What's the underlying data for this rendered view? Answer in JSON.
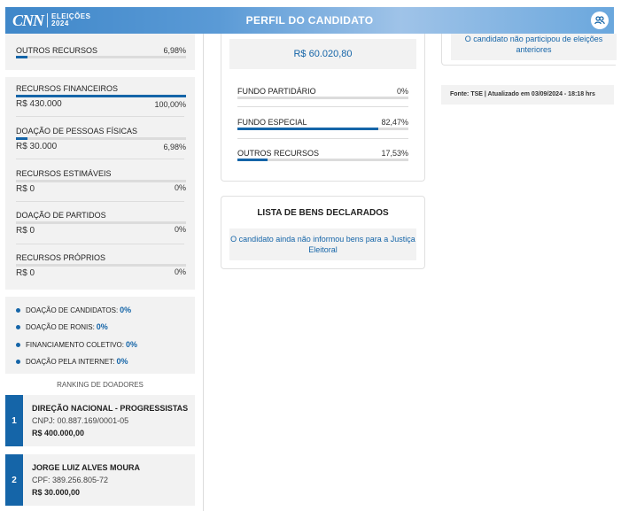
{
  "header": {
    "logo_brand": "CNN",
    "logo_top": "ELEIÇÕES",
    "logo_bottom": "2024",
    "title": "PERFIL DO CANDIDATO",
    "user_icon": "users-icon"
  },
  "left": {
    "outros_recursos": {
      "label": "OUTROS RECURSOS",
      "pct": "6,98%",
      "fill": 0.0698
    },
    "financeiros": [
      {
        "label": "RECURSOS FINANCEIROS",
        "value": "R$ 430.000",
        "pct": "100,00%",
        "fill": 1.0
      },
      {
        "label": "DOAÇÃO DE PESSOAS FÍSICAS",
        "value": "R$ 30.000",
        "pct": "6,98%",
        "fill": 0.0698
      },
      {
        "label": "RECURSOS ESTIMÁVEIS",
        "value": "R$ 0",
        "pct": "0%",
        "fill": 0
      },
      {
        "label": "DOAÇÃO DE PARTIDOS",
        "value": "R$ 0",
        "pct": "0%",
        "fill": 0
      },
      {
        "label": "RECURSOS PRÓPRIOS",
        "value": "R$ 0",
        "pct": "0%",
        "fill": 0
      }
    ],
    "dot_items": [
      {
        "label": "DOAÇÃO DE CANDIDATOS:",
        "value": "0%"
      },
      {
        "label": "DOAÇÃO DE RONIS:",
        "value": "0%"
      },
      {
        "label": "FINANCIAMENTO COLETIVO:",
        "value": "0%"
      },
      {
        "label": "DOAÇÃO PELA INTERNET:",
        "value": "0%"
      }
    ],
    "ranking_title": "RANKING DE DOADORES",
    "donors": [
      {
        "rank": "1",
        "name": "DIREÇÃO NACIONAL - PROGRESSISTAS",
        "doc": "CNPJ: 00.887.169/0001-05",
        "amount": "R$ 400.000,00"
      },
      {
        "rank": "2",
        "name": "JORGE LUIZ ALVES MOURA",
        "doc": "CPF: 389.256.805-72",
        "amount": "R$ 30.000,00"
      }
    ]
  },
  "middle": {
    "total": "R$ 60.020,80",
    "rows": [
      {
        "label": "FUNDO PARTIDÁRIO",
        "pct": "0%",
        "fill": 0
      },
      {
        "label": "FUNDO ESPECIAL",
        "pct": "82,47%",
        "fill": 0.8247
      },
      {
        "label": "OUTROS RECURSOS",
        "pct": "17,53%",
        "fill": 0.1753
      }
    ],
    "bens_title": "LISTA DE BENS DECLARADOS",
    "bens_msg": "O candidato ainda não informou bens para a Justiça Eleitoral"
  },
  "right": {
    "eleicoes_msg": "O candidato não participou de eleições anteriores",
    "fonte": "Fonte: TSE | Atualizado em 03/09/2024 - 18:18 hrs"
  },
  "colors": {
    "accent": "#1565a8",
    "panel": "#f2f2f2"
  }
}
